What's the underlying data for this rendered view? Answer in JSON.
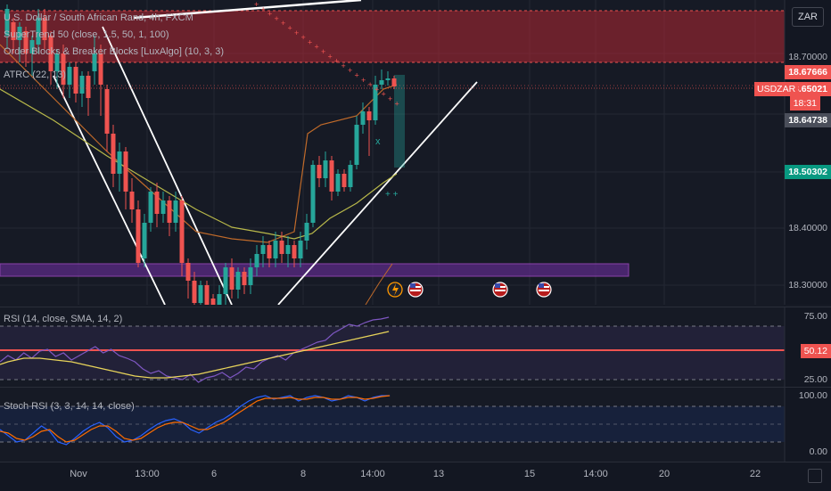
{
  "currency_button": "ZAR",
  "main_legend": {
    "title": "U.S. Dollar / South African Rand, 4h, FXCM",
    "indicators": [
      "SuperTrend 50 (close, 1.5, 50, 1, 100)",
      "Order Blocks & Breaker Blocks [LuxAlgo] (10, 3, 3)",
      "ATRC (22, 13)"
    ]
  },
  "price_scale": {
    "labels": [
      "18.70000",
      "18.40000",
      "18.30000"
    ],
    "tags": {
      "high": "18.67666",
      "last": "18.65021",
      "countdown": "18:31",
      "prev": "18.64738",
      "supertrend": "18.50302"
    },
    "symbol_tag": "USDZAR"
  },
  "rsi": {
    "legend": "RSI (14, close, SMA, 14, 2)",
    "labels": [
      "75.00",
      "25.00"
    ],
    "value": "50.12"
  },
  "stoch": {
    "legend": "Stoch RSI (3, 3, 14, 14, close)",
    "labels": [
      "100.00",
      "0.00"
    ]
  },
  "time_axis": [
    "Nov",
    "13:00",
    "6",
    "8",
    "14:00",
    "13",
    "15",
    "14:00",
    "20",
    "22"
  ],
  "colors": {
    "bull": "#26a69a",
    "bear": "#ef5350",
    "supertrend_zone": "#b22833",
    "order_block": "#9c27b0",
    "rsi_line": "#7e57c2",
    "rsi_ma": "#e8d45a",
    "stoch_k": "#2962ff",
    "stoch_d": "#ff6d00"
  },
  "event_icons": [
    "lightning-icon",
    "us-flag-icon",
    "us-flag-icon",
    "us-flag-icon"
  ]
}
